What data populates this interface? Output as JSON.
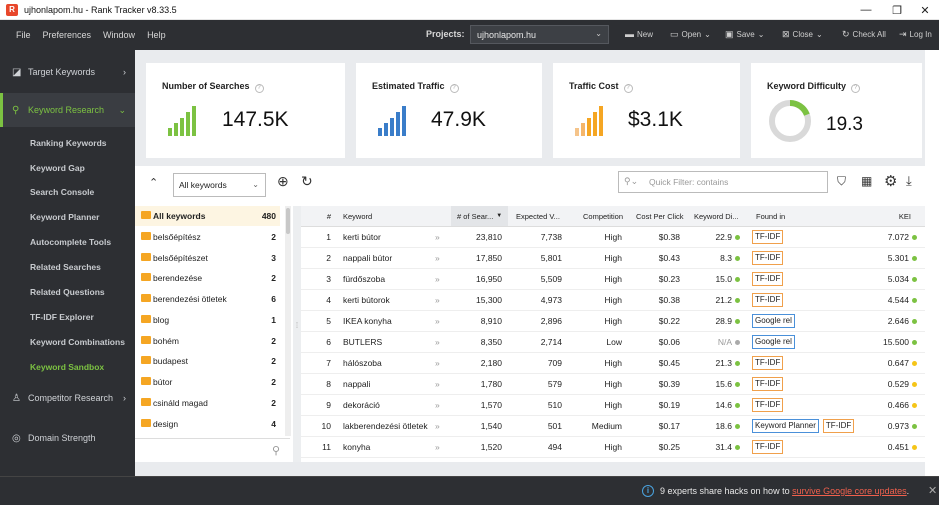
{
  "app": {
    "title": "ujhonlapom.hu - Rank Tracker v8.33.5",
    "icon_letter": "R"
  },
  "window_controls": {
    "minimize": "—",
    "restore": "❐",
    "close": "✕"
  },
  "menu": [
    {
      "label": "File"
    },
    {
      "label": "Preferences"
    },
    {
      "label": "Window"
    },
    {
      "label": "Help"
    }
  ],
  "projects": {
    "label": "Projects:",
    "selected": "ujhonlapom.hu"
  },
  "toolbar": {
    "new": "New",
    "open": "Open",
    "save": "Save",
    "close": "Close",
    "check_all": "Check All",
    "login": "Log In"
  },
  "sidebar": {
    "sections": [
      {
        "label": "Target Keywords",
        "icon": "chart-line-icon"
      },
      {
        "label": "Keyword Research",
        "icon": "search-icon"
      },
      {
        "label": "Competitor Research",
        "icon": "user-icon"
      },
      {
        "label": "Domain Strength",
        "icon": "gauge-icon"
      }
    ],
    "sub_items": [
      "Ranking Keywords",
      "Keyword Gap",
      "Search Console",
      "Keyword Planner",
      "Autocomplete Tools",
      "Related Searches",
      "Related Questions",
      "TF-IDF Explorer",
      "Keyword Combinations",
      "Keyword Sandbox"
    ]
  },
  "cards": [
    {
      "title": "Number of Searches",
      "value": "147.5K",
      "color": "#7cc242"
    },
    {
      "title": "Estimated Traffic",
      "value": "47.9K",
      "color": "#3a7dc9"
    },
    {
      "title": "Traffic Cost",
      "value": "$3.1K",
      "color": "#f5a623"
    },
    {
      "title": "Keyword Difficulty",
      "value": "19.3",
      "color": "#7cc242",
      "progress": 0.193
    }
  ],
  "filter": {
    "select_value": "All keywords",
    "quick_filter_placeholder": "Quick Filter: contains"
  },
  "groups": [
    {
      "name": "All keywords",
      "count": "480"
    },
    {
      "name": "belsőépítész",
      "count": "2"
    },
    {
      "name": "belsőépítészet",
      "count": "3"
    },
    {
      "name": "berendezése",
      "count": "2"
    },
    {
      "name": "berendezési ötletek",
      "count": "6"
    },
    {
      "name": "blog",
      "count": "1"
    },
    {
      "name": "bohém",
      "count": "2"
    },
    {
      "name": "budapest",
      "count": "2"
    },
    {
      "name": "bútor",
      "count": "2"
    },
    {
      "name": "csináld magad",
      "count": "2"
    },
    {
      "name": "design",
      "count": "4"
    }
  ],
  "table": {
    "headers": [
      "#",
      "Keyword",
      "# of Sear...",
      "Expected V...",
      "Competition",
      "Cost Per Click",
      "Keyword Di...",
      "Found in",
      "KEI"
    ],
    "rows": [
      {
        "n": "1",
        "kw": "kerti bútor",
        "searches": "23,810",
        "visits": "7,738",
        "comp": "High",
        "cpc": "$0.38",
        "kd": "22.9",
        "kd_color": "#7cc242",
        "found": [
          "TF-IDF"
        ],
        "kei": "7.072",
        "kei_color": "#7cc242"
      },
      {
        "n": "2",
        "kw": "nappali bútor",
        "searches": "17,850",
        "visits": "5,801",
        "comp": "High",
        "cpc": "$0.43",
        "kd": "8.3",
        "kd_color": "#7cc242",
        "found": [
          "TF-IDF"
        ],
        "kei": "5.301",
        "kei_color": "#7cc242"
      },
      {
        "n": "3",
        "kw": "fürdőszoba",
        "searches": "16,950",
        "visits": "5,509",
        "comp": "High",
        "cpc": "$0.23",
        "kd": "15.0",
        "kd_color": "#7cc242",
        "found": [
          "TF-IDF"
        ],
        "kei": "5.034",
        "kei_color": "#7cc242"
      },
      {
        "n": "4",
        "kw": "kerti bútorok",
        "searches": "15,300",
        "visits": "4,973",
        "comp": "High",
        "cpc": "$0.38",
        "kd": "21.2",
        "kd_color": "#7cc242",
        "found": [
          "TF-IDF"
        ],
        "kei": "4.544",
        "kei_color": "#7cc242"
      },
      {
        "n": "5",
        "kw": "IKEA konyha",
        "searches": "8,910",
        "visits": "2,896",
        "comp": "High",
        "cpc": "$0.22",
        "kd": "28.9",
        "kd_color": "#7cc242",
        "found": [
          "Google rel"
        ],
        "kei": "2.646",
        "kei_color": "#7cc242"
      },
      {
        "n": "6",
        "kw": "BUTLERS",
        "searches": "8,350",
        "visits": "2,714",
        "comp": "Low",
        "cpc": "$0.06",
        "kd": "N/A",
        "kd_color": "#aaaaaa",
        "found": [
          "Google rel"
        ],
        "kei": "15.500",
        "kei_color": "#7cc242"
      },
      {
        "n": "7",
        "kw": "hálószoba",
        "searches": "2,180",
        "visits": "709",
        "comp": "High",
        "cpc": "$0.45",
        "kd": "21.3",
        "kd_color": "#7cc242",
        "found": [
          "TF-IDF"
        ],
        "kei": "0.647",
        "kei_color": "#f5c518"
      },
      {
        "n": "8",
        "kw": "nappali",
        "searches": "1,780",
        "visits": "579",
        "comp": "High",
        "cpc": "$0.39",
        "kd": "15.6",
        "kd_color": "#7cc242",
        "found": [
          "TF-IDF"
        ],
        "kei": "0.529",
        "kei_color": "#f5c518"
      },
      {
        "n": "9",
        "kw": "dekoráció",
        "searches": "1,570",
        "visits": "510",
        "comp": "High",
        "cpc": "$0.19",
        "kd": "14.6",
        "kd_color": "#7cc242",
        "found": [
          "TF-IDF"
        ],
        "kei": "0.466",
        "kei_color": "#f5c518"
      },
      {
        "n": "10",
        "kw": "lakberendezési ötletek",
        "searches": "1,540",
        "visits": "501",
        "comp": "Medium",
        "cpc": "$0.17",
        "kd": "18.6",
        "kd_color": "#7cc242",
        "found": [
          "Keyword Planner",
          "TF-IDF"
        ],
        "kei": "0.973",
        "kei_color": "#7cc242"
      },
      {
        "n": "11",
        "kw": "konyha",
        "searches": "1,520",
        "visits": "494",
        "comp": "High",
        "cpc": "$0.25",
        "kd": "31.4",
        "kd_color": "#7cc242",
        "found": [
          "TF-IDF"
        ],
        "kei": "0.451",
        "kei_color": "#f5c518"
      }
    ]
  },
  "notification": {
    "text": "9 experts share hacks on how to ",
    "link": "survive Google core updates",
    "suffix": "."
  }
}
